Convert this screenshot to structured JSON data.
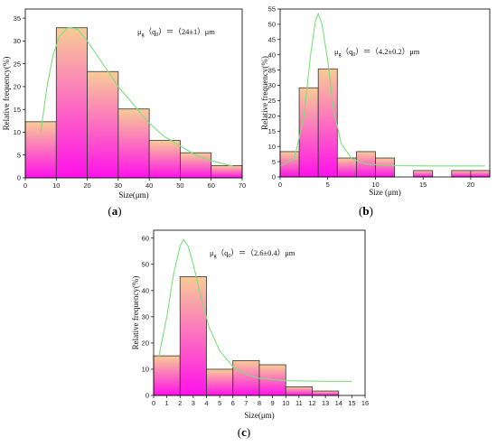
{
  "colors": {
    "bar_top": "#f8cc96",
    "bar_bottom": "#ff10ea",
    "bar_stroke": "#333333",
    "fit_line": "#7be07b"
  },
  "chart_data": [
    {
      "type": "bar",
      "panel_label": "(a)",
      "xlabel": "Size(μm)",
      "ylabel": "Relative frequency(%)",
      "annotation_sub": "g",
      "annotation_sub2": "0",
      "annotation_mid": "（q",
      "annotation_tail": "）＝（24±1）μm",
      "xlim": [
        0,
        70
      ],
      "ylim": [
        0,
        37
      ],
      "xticks": [
        0,
        10,
        20,
        30,
        40,
        50,
        60,
        70
      ],
      "yticks": [
        0,
        5,
        10,
        15,
        20,
        25,
        30,
        35
      ],
      "bars": [
        {
          "x0": 0,
          "x1": 10,
          "value": 12.3
        },
        {
          "x0": 10,
          "x1": 20,
          "value": 32.9
        },
        {
          "x0": 20,
          "x1": 30,
          "value": 23.3
        },
        {
          "x0": 30,
          "x1": 40,
          "value": 15.1
        },
        {
          "x0": 40,
          "x1": 50,
          "value": 8.2
        },
        {
          "x0": 50,
          "x1": 60,
          "value": 5.5
        },
        {
          "x0": 60,
          "x1": 70,
          "value": 2.7
        }
      ],
      "fit": [
        [
          5,
          10
        ],
        [
          7,
          20
        ],
        [
          9,
          27
        ],
        [
          11,
          31
        ],
        [
          14,
          33
        ],
        [
          17,
          32.5
        ],
        [
          20,
          30
        ],
        [
          25,
          25
        ],
        [
          30,
          20
        ],
        [
          35,
          16
        ],
        [
          40,
          12
        ],
        [
          45,
          9
        ],
        [
          50,
          7
        ],
        [
          55,
          5
        ],
        [
          60,
          3.8
        ],
        [
          65,
          2.9
        ],
        [
          67,
          2.6
        ]
      ]
    },
    {
      "type": "bar",
      "panel_label": "(b)",
      "xlabel": "Size (μm)",
      "ylabel": "Relative frequency(%)",
      "annotation_sub": "g",
      "annotation_sub2": "0",
      "annotation_mid": "（q",
      "annotation_tail": "）＝（4.2±0.2）μm",
      "xlim": [
        0,
        22
      ],
      "ylim": [
        0,
        55
      ],
      "xticks": [
        0,
        5,
        10,
        15,
        20
      ],
      "yticks": [
        0,
        5,
        10,
        15,
        20,
        25,
        30,
        35,
        40,
        45,
        50,
        55
      ],
      "bars": [
        {
          "x0": 0,
          "x1": 2,
          "value": 8.3
        },
        {
          "x0": 2,
          "x1": 4,
          "value": 29.2
        },
        {
          "x0": 4,
          "x1": 6,
          "value": 35.4
        },
        {
          "x0": 6,
          "x1": 8,
          "value": 6.2
        },
        {
          "x0": 8,
          "x1": 10,
          "value": 8.3
        },
        {
          "x0": 10,
          "x1": 12,
          "value": 6.2
        },
        {
          "x0": 14,
          "x1": 16,
          "value": 2.1
        },
        {
          "x0": 18,
          "x1": 20,
          "value": 2.1
        },
        {
          "x0": 20,
          "x1": 22,
          "value": 2.1
        }
      ],
      "fit": [
        [
          0,
          3.5
        ],
        [
          1.5,
          6
        ],
        [
          2.5,
          20
        ],
        [
          3.2,
          40
        ],
        [
          3.7,
          51
        ],
        [
          4,
          53.5
        ],
        [
          4.4,
          50
        ],
        [
          5,
          38
        ],
        [
          5.6,
          22
        ],
        [
          6.4,
          11
        ],
        [
          7.5,
          6
        ],
        [
          9,
          4.2
        ],
        [
          12,
          3.7
        ],
        [
          16,
          3.6
        ],
        [
          21.5,
          3.6
        ]
      ]
    },
    {
      "type": "bar",
      "panel_label": "(c)",
      "xlabel": "Size(μm)",
      "ylabel": "Relative frequency(%)",
      "annotation_sub": "g",
      "annotation_sub2": "0",
      "annotation_mid": "（q",
      "annotation_tail": "）＝（2.6±0.4）μm",
      "xlim": [
        0,
        16
      ],
      "ylim": [
        0,
        63
      ],
      "xticks": [
        0,
        1,
        2,
        3,
        4,
        5,
        6,
        7,
        8,
        9,
        10,
        11,
        12,
        13,
        14,
        15,
        16
      ],
      "yticks": [
        0,
        10,
        20,
        30,
        40,
        50,
        60
      ],
      "bars": [
        {
          "x0": 0,
          "x1": 2,
          "value": 15.1
        },
        {
          "x0": 2,
          "x1": 4,
          "value": 45.3
        },
        {
          "x0": 4,
          "x1": 6,
          "value": 10.0
        },
        {
          "x0": 6,
          "x1": 8,
          "value": 13.3
        },
        {
          "x0": 8,
          "x1": 10,
          "value": 11.7
        },
        {
          "x0": 10,
          "x1": 12,
          "value": 3.3
        },
        {
          "x0": 12,
          "x1": 14,
          "value": 1.7
        }
      ],
      "fit": [
        [
          0.4,
          15
        ],
        [
          1,
          30
        ],
        [
          1.5,
          46
        ],
        [
          2,
          57
        ],
        [
          2.25,
          59.5
        ],
        [
          2.6,
          57
        ],
        [
          3,
          50
        ],
        [
          3.6,
          37
        ],
        [
          4.2,
          26
        ],
        [
          5,
          17
        ],
        [
          6,
          11
        ],
        [
          7,
          8
        ],
        [
          8,
          6.5
        ],
        [
          10,
          5.6
        ],
        [
          13,
          5.4
        ],
        [
          15,
          5.4
        ]
      ]
    }
  ]
}
